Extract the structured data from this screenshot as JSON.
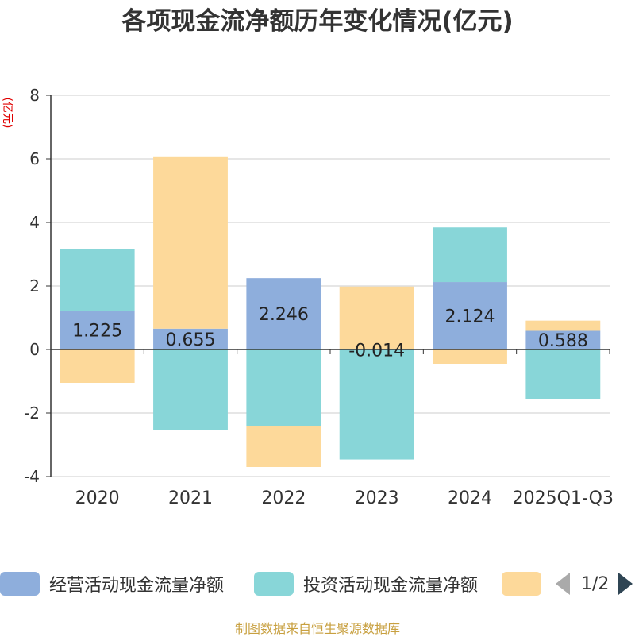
{
  "title": "各项现金流净额历年变化情况(亿元)",
  "unit_label": "(亿元)",
  "source": "制图数据来自恒生聚源数据库",
  "legend": {
    "items": [
      {
        "name": "经营活动现金流量净额",
        "color": "#8eaedc"
      },
      {
        "name": "投资活动现金流量净额",
        "color": "#88d6d8"
      },
      {
        "name": "",
        "color": "#fdd99a"
      }
    ],
    "page": "1/2"
  },
  "chart_data": {
    "type": "bar",
    "stacked": true,
    "categories": [
      "2020",
      "2021",
      "2022",
      "2023",
      "2024",
      "2025Q1-Q3"
    ],
    "ylim": [
      -4,
      8
    ],
    "yticks": [
      -4,
      -2,
      0,
      2,
      4,
      6,
      8
    ],
    "series": [
      {
        "name": "经营活动现金流量净额",
        "color": "#8eaedc",
        "values": [
          1.225,
          0.655,
          2.246,
          -0.014,
          2.124,
          0.588
        ]
      },
      {
        "name": "投资活动现金流量净额",
        "color": "#88d6d8",
        "values": [
          1.95,
          -2.55,
          -2.4,
          -3.45,
          1.72,
          -1.55
        ]
      },
      {
        "name": "",
        "color": "#fdd99a",
        "values": [
          -1.05,
          5.4,
          -1.3,
          1.98,
          -0.45,
          0.32
        ]
      }
    ],
    "data_labels": [
      "1.225",
      "0.655",
      "2.246",
      "-0.014",
      "2.124",
      "0.588"
    ]
  }
}
